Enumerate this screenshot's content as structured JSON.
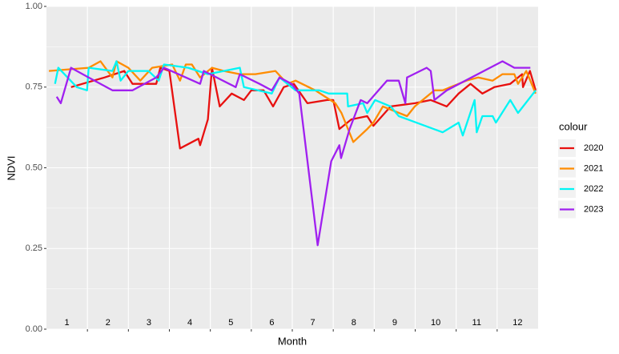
{
  "chart_data": {
    "type": "line",
    "x_label": "Month",
    "y_label": "NDVI",
    "xlim": [
      0,
      12
    ],
    "xticks": [
      {
        "value": 0.5,
        "label": "1"
      },
      {
        "value": 1.5,
        "label": "2"
      },
      {
        "value": 2.5,
        "label": "3"
      },
      {
        "value": 3.5,
        "label": "4"
      },
      {
        "value": 4.5,
        "label": "5"
      },
      {
        "value": 5.5,
        "label": "6"
      },
      {
        "value": 6.5,
        "label": "7"
      },
      {
        "value": 7.5,
        "label": "8"
      },
      {
        "value": 8.5,
        "label": "9"
      },
      {
        "value": 9.5,
        "label": "10"
      },
      {
        "value": 10.5,
        "label": "11"
      },
      {
        "value": 11.5,
        "label": "12"
      }
    ],
    "month_breaks": [
      1,
      2,
      3,
      4,
      5,
      6,
      7,
      8,
      9,
      10,
      11
    ],
    "ylim": [
      0,
      1
    ],
    "yticks": [
      {
        "value": 0,
        "label": "0.00"
      },
      {
        "value": 0.25,
        "label": "0.25"
      },
      {
        "value": 0.5,
        "label": "0.50"
      },
      {
        "value": 0.75,
        "label": "0.75"
      },
      {
        "value": 1,
        "label": "1.00"
      }
    ],
    "grid": true,
    "legend_title": "colour",
    "legend_position": "right",
    "series": [
      {
        "name": "2020",
        "color": "#e8100f",
        "x": [
          0.6,
          1.42,
          1.9,
          2.1,
          2.68,
          2.78,
          3.0,
          3.26,
          3.71,
          3.75,
          3.94,
          4.04,
          4.23,
          4.52,
          4.82,
          5.0,
          5.3,
          5.53,
          5.79,
          6.04,
          6.37,
          6.85,
          7.0,
          7.15,
          7.44,
          7.83,
          7.98,
          8.4,
          8.99,
          9.38,
          9.77,
          10.06,
          10.35,
          10.64,
          10.93,
          11.32,
          11.61,
          11.63,
          11.8,
          11.94
        ],
        "values": [
          0.75,
          0.78,
          0.8,
          0.76,
          0.76,
          0.81,
          0.8,
          0.56,
          0.59,
          0.57,
          0.65,
          0.81,
          0.69,
          0.73,
          0.71,
          0.74,
          0.74,
          0.69,
          0.75,
          0.76,
          0.7,
          0.71,
          0.71,
          0.62,
          0.65,
          0.66,
          0.63,
          0.69,
          0.7,
          0.71,
          0.69,
          0.73,
          0.76,
          0.73,
          0.75,
          0.76,
          0.79,
          0.75,
          0.8,
          0.74
        ]
      },
      {
        "name": "2021",
        "color": "#ff8c00",
        "x": [
          0.06,
          1.03,
          1.32,
          1.61,
          1.71,
          2.0,
          2.29,
          2.58,
          3.07,
          3.26,
          3.4,
          3.55,
          3.75,
          4.04,
          4.33,
          4.72,
          5.1,
          5.59,
          5.88,
          6.08,
          6.56,
          7.05,
          7.2,
          7.49,
          7.83,
          7.98,
          8.21,
          8.8,
          8.99,
          9.47,
          9.67,
          9.86,
          10.06,
          10.25,
          10.54,
          10.89,
          11.13,
          11.42,
          11.51,
          11.71,
          11.94
        ],
        "values": [
          0.8,
          0.81,
          0.83,
          0.78,
          0.83,
          0.81,
          0.77,
          0.81,
          0.82,
          0.77,
          0.82,
          0.82,
          0.78,
          0.81,
          0.8,
          0.79,
          0.79,
          0.8,
          0.76,
          0.77,
          0.74,
          0.7,
          0.67,
          0.58,
          0.62,
          0.64,
          0.69,
          0.66,
          0.69,
          0.74,
          0.74,
          0.75,
          0.76,
          0.77,
          0.78,
          0.77,
          0.79,
          0.79,
          0.76,
          0.8,
          0.73
        ]
      },
      {
        "name": "2022",
        "color": "#00f5f5",
        "x": [
          0.21,
          0.29,
          0.74,
          0.99,
          1.03,
          1.61,
          1.71,
          1.81,
          2.0,
          2.49,
          2.74,
          2.87,
          3.46,
          3.94,
          4.72,
          4.82,
          5.5,
          5.69,
          6.08,
          6.66,
          6.89,
          7.34,
          7.36,
          7.73,
          7.83,
          8.02,
          8.4,
          8.6,
          9.67,
          10.06,
          10.16,
          10.45,
          10.5,
          10.64,
          10.89,
          10.97,
          11.32,
          11.51,
          11.94
        ],
        "values": [
          0.76,
          0.81,
          0.75,
          0.74,
          0.81,
          0.8,
          0.83,
          0.77,
          0.8,
          0.8,
          0.77,
          0.82,
          0.81,
          0.79,
          0.81,
          0.75,
          0.73,
          0.78,
          0.74,
          0.74,
          0.73,
          0.73,
          0.69,
          0.7,
          0.67,
          0.71,
          0.69,
          0.66,
          0.61,
          0.64,
          0.6,
          0.71,
          0.61,
          0.66,
          0.66,
          0.64,
          0.71,
          0.67,
          0.74
        ]
      },
      {
        "name": "2023",
        "color": "#a020f0",
        "x": [
          0.25,
          0.35,
          0.6,
          1.03,
          1.61,
          2.1,
          2.68,
          2.87,
          3.75,
          3.84,
          4.62,
          4.72,
          5.2,
          5.5,
          5.69,
          5.98,
          6.17,
          6.62,
          6.95,
          7.15,
          7.19,
          7.4,
          7.67,
          7.83,
          8.31,
          8.6,
          8.76,
          8.8,
          9.28,
          9.38,
          9.47,
          9.77,
          11.13,
          11.42,
          11.81
        ],
        "values": [
          0.72,
          0.7,
          0.81,
          0.78,
          0.74,
          0.74,
          0.78,
          0.81,
          0.76,
          0.8,
          0.75,
          0.79,
          0.76,
          0.74,
          0.78,
          0.76,
          0.73,
          0.26,
          0.52,
          0.57,
          0.53,
          0.62,
          0.71,
          0.7,
          0.77,
          0.77,
          0.7,
          0.78,
          0.81,
          0.8,
          0.71,
          0.74,
          0.83,
          0.81,
          0.81
        ]
      }
    ]
  }
}
